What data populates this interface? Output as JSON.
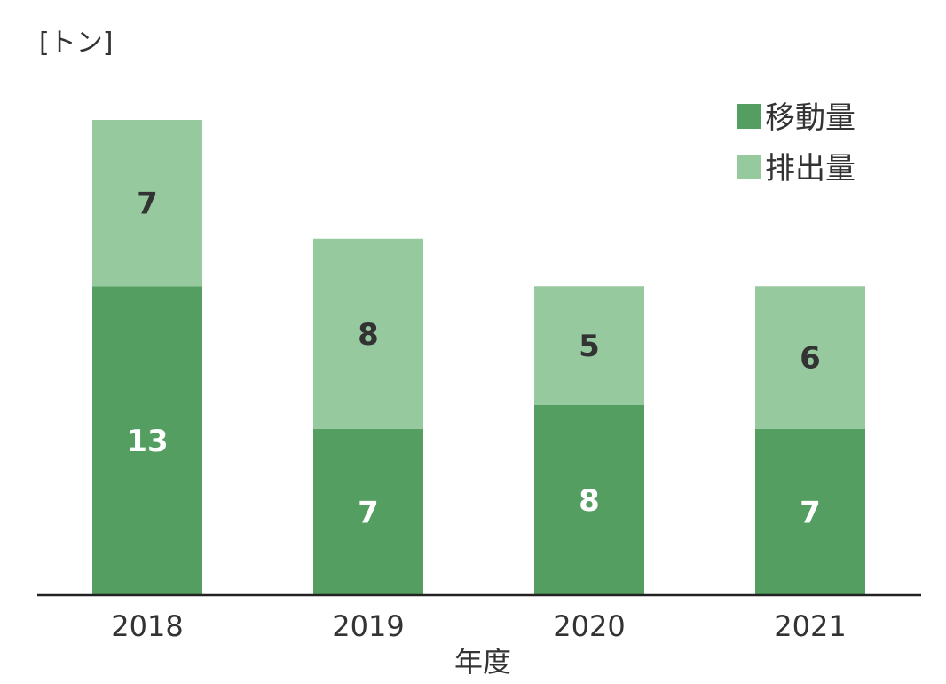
{
  "chart_data": {
    "type": "bar",
    "stacked": true,
    "unit_label": "[トン]",
    "xlabel": "年度",
    "ylabel": "",
    "categories": [
      "2018",
      "2019",
      "2020",
      "2021"
    ],
    "series": [
      {
        "name": "移動量",
        "values": [
          13,
          7,
          8,
          7
        ],
        "color": "#539e60",
        "label_color": "#ffffff"
      },
      {
        "name": "排出量",
        "values": [
          7,
          8,
          5,
          6
        ],
        "color": "#97c99f",
        "label_color": "#333333"
      }
    ],
    "ylim": [
      0,
      20
    ],
    "grid": false,
    "legend_position": "top-right",
    "axis_color": "#222222"
  }
}
